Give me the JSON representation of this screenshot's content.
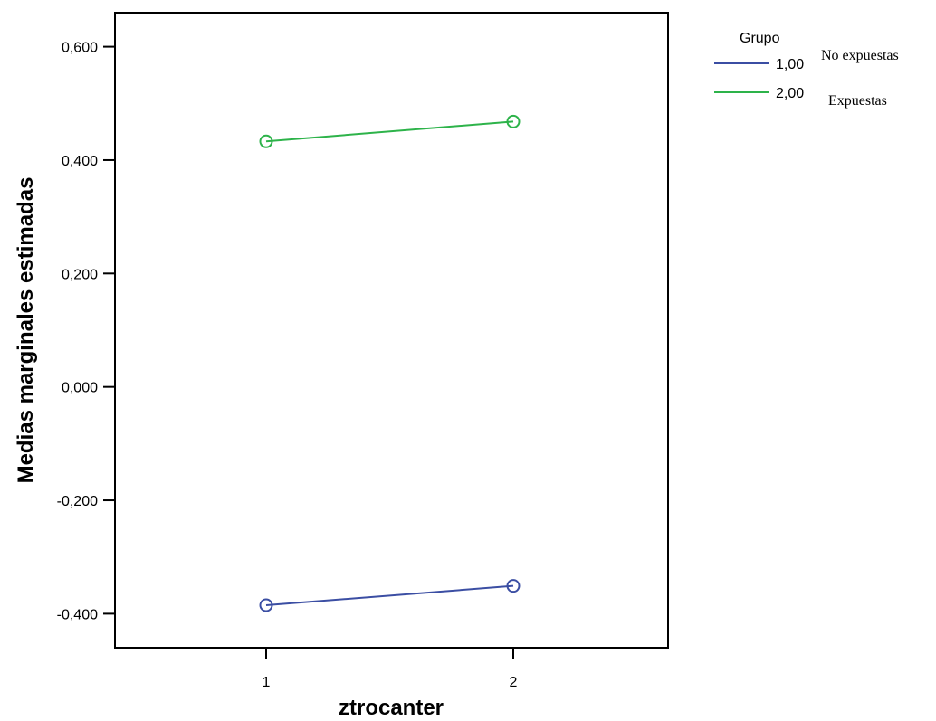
{
  "chart_data": {
    "type": "line",
    "xlabel": "ztrocanter",
    "ylabel": "Medias marginales estimadas",
    "categories": [
      "1",
      "2"
    ],
    "ylim": [
      -0.46,
      0.66
    ],
    "yticks": [
      "0,600",
      "0,400",
      "0,200",
      "0,000",
      "-0,200",
      "-0,400"
    ],
    "ytick_values": [
      0.6,
      0.4,
      0.2,
      0.0,
      -0.2,
      -0.4
    ],
    "grid": false,
    "legend_position": "top-right",
    "legend": {
      "title": "Grupo",
      "entries": [
        {
          "code": "1,00",
          "note": "No expuestas",
          "color": "#3b4ea3"
        },
        {
          "code": "2,00",
          "note": "Expuestas",
          "color": "#2db34a"
        }
      ]
    },
    "series": [
      {
        "name": "1,00",
        "color": "#3b4ea3",
        "values": [
          -0.385,
          -0.351
        ]
      },
      {
        "name": "2,00",
        "color": "#2db34a",
        "values": [
          0.433,
          0.468
        ]
      }
    ]
  }
}
